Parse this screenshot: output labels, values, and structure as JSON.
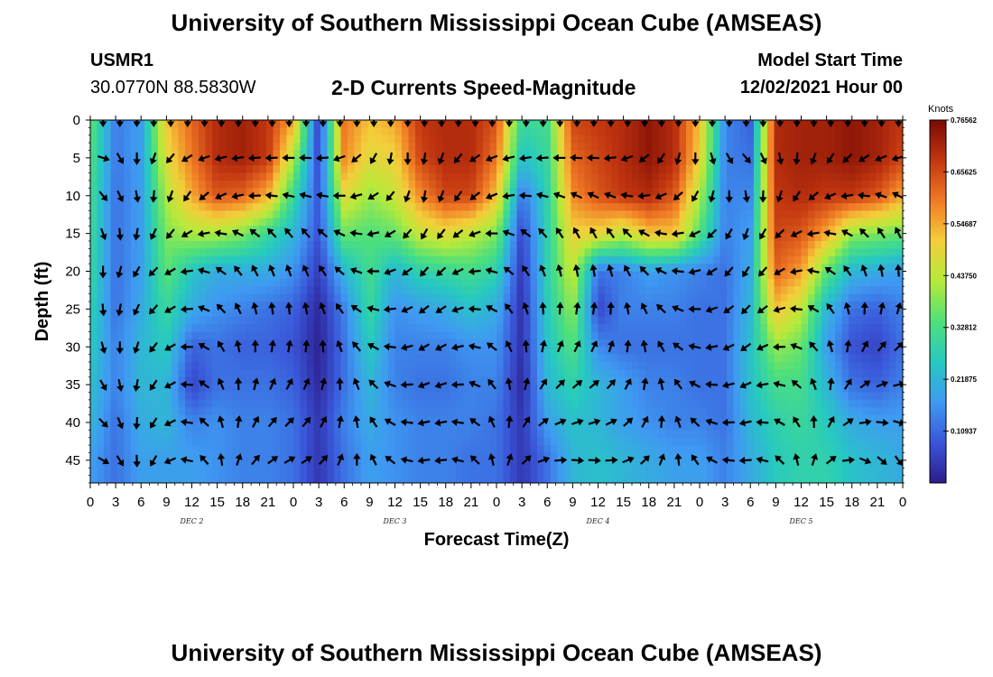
{
  "header": {
    "title": "University of Southern Mississippi Ocean Cube (AMSEAS)",
    "station_id": "USMR1",
    "station_coords": "30.0770N  88.5830W",
    "subtitle": "2-D Currents Speed-Magnitude",
    "model_start_label": "Model Start Time",
    "model_start_value": "12/02/2021 Hour 00"
  },
  "footer": {
    "title": "University of Southern Mississippi Ocean Cube (AMSEAS)"
  },
  "colors": {
    "stops": [
      "#2b1c8c",
      "#3a56d8",
      "#3f9af2",
      "#26c9c0",
      "#4fe07a",
      "#b6ea3a",
      "#f4ce3a",
      "#f07a25",
      "#c23610",
      "#7a0a04"
    ]
  },
  "chart_data": {
    "type": "heatmap",
    "title": "2-D Currents Speed-Magnitude",
    "xlabel": "Forecast Time(Z)",
    "ylabel": "Depth (ft)",
    "x_ticks": [
      "0",
      "3",
      "6",
      "9",
      "12",
      "15",
      "18",
      "21",
      "0",
      "3",
      "6",
      "9",
      "12",
      "15",
      "18",
      "21",
      "0",
      "3",
      "6",
      "9",
      "12",
      "15",
      "18",
      "21",
      "0",
      "3",
      "6",
      "9",
      "12",
      "15",
      "18",
      "21",
      "0"
    ],
    "x_range_hours": [
      0,
      96
    ],
    "day_labels": [
      {
        "label": "DEC 2",
        "hour": 12
      },
      {
        "label": "DEC 3",
        "hour": 36
      },
      {
        "label": "DEC 4",
        "hour": 60
      },
      {
        "label": "DEC 5",
        "hour": 84
      }
    ],
    "y_ticks": [
      0,
      5,
      10,
      15,
      20,
      25,
      30,
      35,
      40,
      45
    ],
    "y_range_ft": [
      0,
      48
    ],
    "colorbar": {
      "unit": "Knots",
      "tick_labels": [
        "0.76562",
        "0.65625",
        "0.54687",
        "0.43750",
        "0.32812",
        "0.21875",
        "0.10937"
      ],
      "tick_values": [
        0.76562,
        0.65625,
        0.54687,
        0.4375,
        0.32812,
        0.21875,
        0.10937
      ],
      "range": [
        0,
        0.76562
      ]
    },
    "speed_hours": [
      0,
      3,
      6,
      9,
      12,
      15,
      18,
      21,
      24,
      27,
      30,
      33,
      36,
      39,
      42,
      45,
      48,
      51,
      54,
      57,
      60,
      63,
      66,
      69,
      72,
      75,
      78,
      81,
      84,
      87,
      90,
      93,
      96
    ],
    "speed_depths": [
      0,
      5,
      10,
      15,
      20,
      25,
      30,
      35,
      40,
      45
    ],
    "speed_knots": [
      [
        0.36,
        0.13,
        0.18,
        0.52,
        0.62,
        0.7,
        0.72,
        0.68,
        0.55,
        0.05,
        0.6,
        0.52,
        0.55,
        0.68,
        0.7,
        0.7,
        0.64,
        0.3,
        0.32,
        0.66,
        0.68,
        0.7,
        0.74,
        0.7,
        0.52,
        0.15,
        0.1,
        0.7,
        0.72,
        0.72,
        0.74,
        0.72,
        0.68
      ],
      [
        0.34,
        0.13,
        0.18,
        0.48,
        0.6,
        0.7,
        0.72,
        0.68,
        0.42,
        0.06,
        0.58,
        0.48,
        0.5,
        0.66,
        0.7,
        0.7,
        0.6,
        0.24,
        0.3,
        0.62,
        0.66,
        0.7,
        0.74,
        0.7,
        0.5,
        0.14,
        0.12,
        0.7,
        0.72,
        0.72,
        0.74,
        0.72,
        0.66
      ],
      [
        0.32,
        0.12,
        0.18,
        0.42,
        0.55,
        0.64,
        0.62,
        0.54,
        0.3,
        0.08,
        0.48,
        0.4,
        0.45,
        0.58,
        0.66,
        0.66,
        0.52,
        0.12,
        0.28,
        0.58,
        0.64,
        0.68,
        0.7,
        0.64,
        0.42,
        0.14,
        0.15,
        0.68,
        0.7,
        0.68,
        0.68,
        0.64,
        0.55
      ],
      [
        0.31,
        0.12,
        0.18,
        0.38,
        0.42,
        0.42,
        0.38,
        0.3,
        0.22,
        0.08,
        0.36,
        0.34,
        0.36,
        0.45,
        0.48,
        0.44,
        0.38,
        0.06,
        0.28,
        0.5,
        0.5,
        0.44,
        0.52,
        0.52,
        0.34,
        0.14,
        0.18,
        0.66,
        0.64,
        0.55,
        0.4,
        0.38,
        0.36
      ],
      [
        0.3,
        0.12,
        0.18,
        0.35,
        0.25,
        0.2,
        0.2,
        0.2,
        0.16,
        0.05,
        0.22,
        0.32,
        0.22,
        0.28,
        0.3,
        0.32,
        0.28,
        0.04,
        0.28,
        0.45,
        0.12,
        0.14,
        0.18,
        0.16,
        0.14,
        0.12,
        0.2,
        0.62,
        0.56,
        0.35,
        0.22,
        0.2,
        0.18
      ],
      [
        0.28,
        0.12,
        0.2,
        0.3,
        0.2,
        0.16,
        0.14,
        0.12,
        0.1,
        0.02,
        0.14,
        0.3,
        0.16,
        0.18,
        0.2,
        0.24,
        0.2,
        0.03,
        0.26,
        0.4,
        0.06,
        0.14,
        0.14,
        0.14,
        0.12,
        0.12,
        0.22,
        0.52,
        0.44,
        0.22,
        0.12,
        0.1,
        0.14
      ],
      [
        0.26,
        0.14,
        0.22,
        0.26,
        0.1,
        0.12,
        0.1,
        0.1,
        0.08,
        0.01,
        0.12,
        0.26,
        0.14,
        0.14,
        0.14,
        0.16,
        0.16,
        0.03,
        0.24,
        0.34,
        0.15,
        0.12,
        0.12,
        0.12,
        0.12,
        0.12,
        0.24,
        0.4,
        0.36,
        0.18,
        0.08,
        0.06,
        0.12
      ],
      [
        0.24,
        0.14,
        0.22,
        0.22,
        0.06,
        0.12,
        0.12,
        0.12,
        0.1,
        0.02,
        0.12,
        0.22,
        0.14,
        0.12,
        0.12,
        0.14,
        0.14,
        0.02,
        0.22,
        0.28,
        0.22,
        0.18,
        0.14,
        0.14,
        0.12,
        0.12,
        0.24,
        0.32,
        0.32,
        0.22,
        0.12,
        0.1,
        0.14
      ],
      [
        0.22,
        0.12,
        0.2,
        0.22,
        0.14,
        0.16,
        0.14,
        0.14,
        0.12,
        0.04,
        0.14,
        0.2,
        0.16,
        0.14,
        0.14,
        0.14,
        0.12,
        0.04,
        0.18,
        0.24,
        0.22,
        0.18,
        0.16,
        0.14,
        0.14,
        0.12,
        0.22,
        0.28,
        0.3,
        0.26,
        0.2,
        0.18,
        0.18
      ],
      [
        0.18,
        0.12,
        0.18,
        0.18,
        0.18,
        0.16,
        0.14,
        0.14,
        0.12,
        0.04,
        0.12,
        0.18,
        0.16,
        0.14,
        0.14,
        0.12,
        0.12,
        0.04,
        0.12,
        0.22,
        0.24,
        0.22,
        0.2,
        0.18,
        0.18,
        0.14,
        0.2,
        0.26,
        0.28,
        0.28,
        0.24,
        0.22,
        0.2
      ]
    ],
    "arrow_hours": [
      1.5,
      3.5,
      5.5,
      7.5,
      9.5,
      11.5,
      13.5,
      15.5,
      17.5,
      19.5,
      21.5,
      23.5,
      25.5,
      27.5,
      29.5,
      31.5,
      33.5,
      35.5,
      37.5,
      39.5,
      41.5,
      43.5,
      45.5,
      47.5,
      49.5,
      51.5,
      53.5,
      55.5,
      57.5,
      59.5,
      61.5,
      63.5,
      65.5,
      67.5,
      69.5,
      71.5,
      73.5,
      75.5,
      77.5,
      79.5,
      81.5,
      83.5,
      85.5,
      87.5,
      89.5,
      91.5,
      93.5,
      95.5
    ],
    "arrow_depths": [
      0,
      5,
      10,
      15,
      20,
      25,
      30,
      35,
      40,
      45
    ],
    "arrow_direction_deg": [
      [
        180,
        180,
        180,
        180,
        180,
        180,
        180,
        180,
        180,
        180,
        180,
        180,
        180,
        180,
        180,
        180,
        180,
        180,
        180,
        180,
        180,
        180,
        180,
        180,
        180,
        180,
        180,
        180,
        180,
        180,
        180,
        180,
        180,
        180,
        180,
        180,
        180,
        180,
        180,
        180,
        180,
        180,
        180,
        180,
        180,
        180,
        180,
        180
      ],
      [
        108,
        150,
        180,
        200,
        220,
        238,
        250,
        256,
        262,
        266,
        268,
        270,
        272,
        266,
        250,
        230,
        210,
        190,
        180,
        190,
        200,
        220,
        236,
        248,
        256,
        262,
        266,
        270,
        274,
        272,
        264,
        250,
        232,
        214,
        196,
        180,
        164,
        150,
        140,
        154,
        170,
        186,
        200,
        214,
        226,
        238,
        248,
        256
      ],
      [
        140,
        155,
        170,
        185,
        200,
        215,
        230,
        245,
        258,
        268,
        276,
        282,
        284,
        280,
        270,
        255,
        238,
        220,
        200,
        190,
        200,
        215,
        232,
        248,
        262,
        274,
        284,
        290,
        294,
        294,
        290,
        280,
        264,
        246,
        228,
        210,
        194,
        180,
        170,
        182,
        198,
        214,
        230,
        246,
        262,
        276,
        288,
        296
      ],
      [
        160,
        175,
        190,
        205,
        220,
        240,
        260,
        280,
        296,
        308,
        316,
        320,
        318,
        310,
        296,
        278,
        258,
        240,
        222,
        210,
        218,
        232,
        250,
        270,
        290,
        306,
        318,
        326,
        330,
        330,
        324,
        314,
        298,
        280,
        262,
        244,
        226,
        210,
        200,
        210,
        226,
        244,
        262,
        280,
        298,
        314,
        326,
        334
      ],
      [
        180,
        195,
        210,
        225,
        240,
        262,
        286,
        306,
        322,
        332,
        338,
        340,
        336,
        326,
        310,
        290,
        270,
        250,
        234,
        222,
        228,
        244,
        264,
        286,
        308,
        326,
        338,
        346,
        350,
        350,
        344,
        332,
        316,
        296,
        276,
        256,
        238,
        222,
        212,
        222,
        240,
        260,
        282,
        304,
        324,
        340,
        350,
        356
      ],
      [
        175,
        190,
        205,
        222,
        240,
        266,
        292,
        316,
        334,
        346,
        352,
        354,
        350,
        340,
        324,
        304,
        284,
        264,
        246,
        232,
        236,
        252,
        274,
        298,
        322,
        342,
        356,
        4,
        8,
        8,
        2,
        350,
        334,
        314,
        292,
        270,
        250,
        234,
        224,
        234,
        254,
        276,
        300,
        324,
        346,
        2,
        12,
        16
      ],
      [
        165,
        180,
        198,
        218,
        240,
        270,
        300,
        328,
        348,
        0,
        8,
        10,
        6,
        356,
        340,
        320,
        298,
        276,
        256,
        240,
        242,
        258,
        282,
        308,
        334,
        356,
        12,
        22,
        26,
        26,
        18,
        6,
        350,
        330,
        306,
        282,
        260,
        244,
        234,
        246,
        268,
        292,
        318,
        344,
        8,
        28,
        40,
        46
      ],
      [
        150,
        168,
        190,
        214,
        242,
        274,
        306,
        336,
        358,
        14,
        24,
        28,
        24,
        14,
        358,
        338,
        314,
        290,
        268,
        250,
        252,
        268,
        294,
        322,
        350,
        14,
        32,
        44,
        50,
        50,
        42,
        28,
        10,
        348,
        324,
        298,
        274,
        256,
        246,
        260,
        284,
        310,
        338,
        6,
        32,
        54,
        68,
        76
      ],
      [
        135,
        158,
        184,
        212,
        244,
        278,
        312,
        344,
        8,
        28,
        40,
        44,
        40,
        28,
        10,
        350,
        326,
        300,
        276,
        258,
        260,
        278,
        306,
        336,
        6,
        32,
        52,
        66,
        72,
        72,
        64,
        48,
        28,
        4,
        340,
        314,
        288,
        268,
        258,
        274,
        300,
        328,
        358,
        28,
        56,
        80,
        96,
        106
      ],
      [
        120,
        148,
        178,
        210,
        246,
        282,
        318,
        352,
        18,
        40,
        54,
        60,
        56,
        42,
        22,
        0,
        334,
        308,
        282,
        262,
        264,
        284,
        314,
        346,
        18,
        46,
        70,
        86,
        94,
        94,
        86,
        68,
        46,
        20,
        354,
        326,
        298,
        276,
        266,
        284,
        314,
        346,
        18,
        52,
        84,
        112,
        130,
        142
      ]
    ]
  }
}
